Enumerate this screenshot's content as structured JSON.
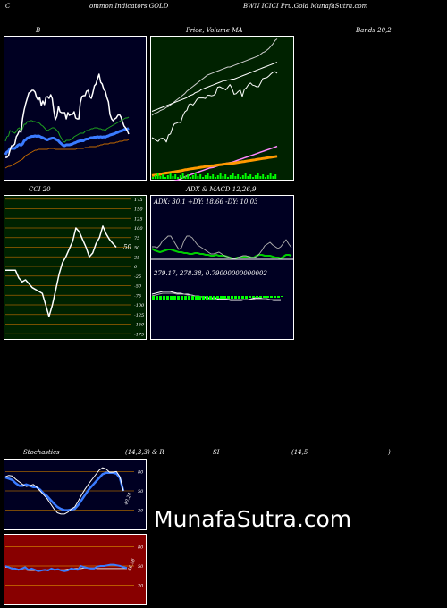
{
  "header": {
    "left": "ommon Indicators GOLD",
    "right": "BWN ICICI Pru.Gold MunafaSutra.com",
    "c_letter": "C"
  },
  "colors": {
    "bb_panel_bg": "#000022",
    "price_panel_bg": "#002200",
    "cci_panel_bg": "#002200",
    "macd_panel_bg": "#000022",
    "stoch_panel_bg": "#000022",
    "rsi_panel_bg": "#880000",
    "price_line": "#ffffff",
    "avg_line": "#3a7bff",
    "upper_band": "#1fa31f",
    "lower_band": "#c46a00",
    "volume": "#00ff00"
  },
  "watermark": "MunafaSutra.com",
  "chart_data": [
    {
      "type": "line",
      "panel": "bollinger",
      "title": "B",
      "title_right": "Bands 20,2",
      "series": [
        {
          "values": [
            118,
            113,
            112,
            106,
            107,
            108,
            109,
            107,
            104,
            103,
            106,
            104,
            99,
            99,
            96,
            96,
            95,
            95,
            96,
            96,
            97,
            97,
            98,
            100,
            101,
            103,
            105,
            106,
            105,
            104,
            103,
            103,
            104,
            106,
            108,
            112,
            115,
            118,
            119,
            117,
            117,
            117,
            116,
            115,
            113,
            112,
            111,
            110,
            109,
            109,
            109,
            107,
            106,
            106,
            105,
            104,
            104,
            103,
            103,
            103,
            104,
            104,
            105,
            105,
            106,
            104,
            103,
            102,
            101,
            100,
            99,
            98,
            97,
            96,
            95,
            94,
            93,
            92,
            92,
            91
          ]
        },
        {
          "values": [
            148,
            147,
            146,
            146,
            145,
            144,
            143,
            142,
            141,
            140,
            139,
            138,
            136,
            134,
            133,
            132,
            131,
            130,
            129,
            128,
            128,
            127,
            127,
            127,
            127,
            127,
            127,
            127,
            126,
            126,
            126,
            126,
            127,
            127,
            127,
            127,
            127,
            127,
            127,
            127,
            127,
            127,
            127,
            127,
            127,
            127,
            126,
            126,
            126,
            126,
            126,
            125,
            125,
            125,
            124,
            124,
            124,
            124,
            124,
            123,
            123,
            122,
            122,
            121,
            121,
            121,
            121,
            120,
            120,
            120,
            120,
            119,
            119,
            118,
            118,
            118,
            117,
            117,
            117,
            116
          ]
        },
        {
          "values": [
            176,
            176,
            174,
            168,
            163,
            163,
            161,
            153,
            150,
            146,
            148,
            133,
            123,
            116,
            110,
            104,
            103,
            101,
            101,
            103,
            109,
            112,
            109,
            118,
            113,
            117,
            109,
            108,
            110,
            106,
            110,
            124,
            134,
            130,
            119,
            125,
            126,
            126,
            126,
            133,
            126,
            129,
            128,
            128,
            125,
            132,
            133,
            133,
            115,
            108,
            107,
            107,
            102,
            101,
            108,
            110,
            104,
            96,
            94,
            88,
            83,
            92,
            94,
            100,
            102,
            109,
            114,
            128,
            133,
            135,
            133,
            132,
            129,
            128,
            131,
            136,
            141,
            143,
            146,
            150
          ]
        }
      ]
    },
    {
      "type": "line",
      "panel": "price",
      "title": "Price,  Volume  MA",
      "series": [
        {
          "values": [
            140,
            142,
            143,
            144,
            146,
            147,
            148,
            150,
            151,
            153,
            155,
            157,
            159,
            161,
            163,
            165,
            167,
            170,
            172,
            174,
            176,
            178,
            180,
            182,
            184,
            186,
            188,
            190,
            191,
            192,
            193,
            194,
            195,
            196,
            197,
            198,
            199,
            200,
            200,
            201,
            202,
            203,
            204,
            205,
            206,
            207,
            208,
            209,
            210,
            211,
            212,
            213,
            214,
            216,
            218,
            219,
            221,
            223,
            226,
            229,
            233,
            235
          ]
        },
        {
          "values": [
            161,
            162,
            163,
            164,
            165,
            166,
            167,
            168,
            169,
            170,
            171,
            172,
            173,
            174,
            175,
            176,
            177,
            178,
            180,
            181,
            182,
            184,
            185,
            186,
            188,
            189,
            190,
            191,
            192,
            193,
            194,
            195,
            196,
            197,
            198,
            199,
            199,
            200,
            200,
            201,
            201,
            202,
            203,
            204,
            205,
            206,
            207,
            208,
            209,
            210,
            211,
            212,
            213,
            214,
            215,
            216,
            217,
            218,
            219,
            220,
            221,
            222
          ]
        },
        {
          "values": [
            70,
            72,
            74,
            76,
            78,
            81,
            84,
            86,
            88,
            90,
            92,
            94,
            96,
            98,
            100,
            103,
            106,
            108,
            110,
            112,
            114,
            116,
            118,
            120,
            122,
            124,
            126,
            128,
            130,
            131,
            132,
            134,
            136,
            138,
            139,
            141,
            143,
            144,
            145,
            146,
            148,
            150,
            152,
            154,
            156,
            158,
            160,
            162,
            164,
            166,
            168,
            170,
            172,
            174,
            176,
            178,
            180,
            182,
            184,
            186,
            188,
            190
          ]
        },
        {
          "values": [
            120,
            118,
            115,
            113,
            118,
            119,
            118,
            112,
            125,
            127,
            139,
            146,
            147,
            149,
            148,
            160,
            168,
            171,
            182,
            183,
            181,
            186,
            192,
            194,
            194,
            194,
            193,
            199,
            199,
            198,
            199,
            202,
            214,
            215,
            213,
            212,
            209,
            214,
            219,
            212,
            201,
            202,
            206,
            209,
            197,
            210,
            213,
            219,
            222,
            218,
            217,
            215,
            215,
            222,
            230,
            231,
            232,
            235,
            239,
            242,
            243,
            240
          ]
        }
      ]
    },
    {
      "type": "line",
      "panel": "cci",
      "title": "CCI 20",
      "yticks": [
        "175",
        "150",
        "125",
        "100",
        "75",
        "50",
        "25",
        "0",
        "-25",
        "-50",
        "-75",
        "-100",
        "-125",
        "-150",
        "-175"
      ],
      "value_label": "50",
      "series": [
        {
          "values": [
            -10,
            -10,
            -10,
            -10,
            -30,
            -40,
            -35,
            -45,
            -55,
            -60,
            -65,
            -70,
            -100,
            -130,
            -100,
            -60,
            -20,
            10,
            25,
            45,
            65,
            100,
            90,
            70,
            50,
            25,
            35,
            60,
            75,
            105,
            85,
            70,
            60,
            50
          ]
        }
      ]
    },
    {
      "type": "line",
      "panel": "adx",
      "title": "ADX  & MACD 12,26,9",
      "label": "ADX: 30.1  +DY: 18.66  -DY: 10.03",
      "series": [
        {
          "values": [
            26,
            24,
            23,
            22,
            23,
            24,
            25,
            25,
            24,
            23,
            22,
            22,
            21,
            21,
            20,
            20,
            21,
            21,
            20,
            20,
            19,
            19,
            18,
            18,
            19,
            18,
            18,
            18,
            17,
            16,
            15,
            15,
            16,
            16,
            17,
            17,
            17,
            16,
            16,
            18,
            19,
            19,
            18,
            18,
            18,
            17,
            16,
            16,
            15,
            17,
            19,
            19,
            18
          ]
        },
        {
          "values": [
            28,
            28,
            27,
            30,
            35,
            37,
            40,
            40,
            35,
            30,
            25,
            27,
            35,
            40,
            40,
            38,
            34,
            30,
            28,
            26,
            24,
            22,
            20,
            20,
            21,
            22,
            20,
            18,
            17,
            16,
            15,
            15,
            16,
            17,
            18,
            18,
            17,
            16,
            16,
            17,
            20,
            24,
            29,
            31,
            33,
            30,
            28,
            26,
            28,
            32,
            36,
            31,
            27
          ]
        }
      ]
    },
    {
      "type": "line",
      "panel": "macd",
      "label": "279.17,  278.38,  0.79000000000002",
      "series": [
        {
          "values": [
            7,
            8,
            9,
            10,
            10,
            10,
            9,
            8,
            8,
            7,
            7,
            6,
            5,
            4,
            4,
            3,
            2,
            2,
            2,
            1,
            1,
            1,
            0,
            0,
            0,
            0,
            1,
            1,
            2,
            3,
            3,
            2,
            2,
            1,
            0,
            0,
            0
          ]
        },
        {
          "values": [
            5,
            6,
            7,
            8,
            8,
            8,
            8,
            7,
            7,
            7,
            6,
            6,
            5,
            5,
            4,
            4,
            3,
            3,
            3,
            2,
            2,
            2,
            1,
            1,
            1,
            1,
            1,
            1,
            1,
            2,
            2,
            2,
            2,
            1,
            1,
            1,
            1
          ]
        }
      ]
    },
    {
      "type": "line",
      "panel": "stochastics",
      "title": "Stochastics",
      "params": "(14,3,3) & R",
      "yticks": [
        "80",
        "50",
        "20"
      ],
      "value_label": "40.24",
      "series": [
        {
          "values": [
            71,
            69,
            67,
            62,
            58,
            58,
            60,
            58,
            56,
            56,
            52,
            46,
            42,
            36,
            30,
            25,
            22,
            20,
            20,
            21,
            22,
            28,
            36,
            44,
            52,
            58,
            64,
            70,
            76,
            78,
            78,
            78,
            77,
            70,
            50
          ]
        },
        {
          "values": [
            72,
            74,
            73,
            68,
            64,
            60,
            57,
            58,
            60,
            56,
            50,
            44,
            38,
            30,
            22,
            16,
            14,
            14,
            17,
            22,
            25,
            34,
            44,
            53,
            61,
            68,
            75,
            82,
            86,
            84,
            79,
            79,
            80,
            72,
            50
          ]
        }
      ]
    },
    {
      "type": "line",
      "panel": "rsi",
      "title": "SI",
      "params": "(14,5",
      "close_paren": ")",
      "yticks": [
        "80",
        "50",
        "20"
      ],
      "value_label": "46.58",
      "series": [
        {
          "values": [
            48,
            48,
            47,
            46,
            45,
            44,
            44,
            43,
            43,
            43,
            43,
            43,
            43,
            44,
            44,
            44,
            44,
            44,
            44,
            45,
            45,
            46,
            46,
            46,
            47,
            47,
            47,
            47,
            46,
            46,
            46,
            46,
            46,
            46,
            46,
            46,
            46,
            46
          ]
        },
        {
          "values": [
            50,
            48,
            46,
            46,
            44,
            46,
            48,
            44,
            46,
            44,
            42,
            43,
            44,
            43,
            46,
            44,
            45,
            43,
            42,
            43,
            46,
            45,
            44,
            50,
            48,
            47,
            46,
            46,
            49,
            50,
            50,
            51,
            52,
            52,
            51,
            50,
            48,
            47
          ]
        }
      ]
    }
  ]
}
